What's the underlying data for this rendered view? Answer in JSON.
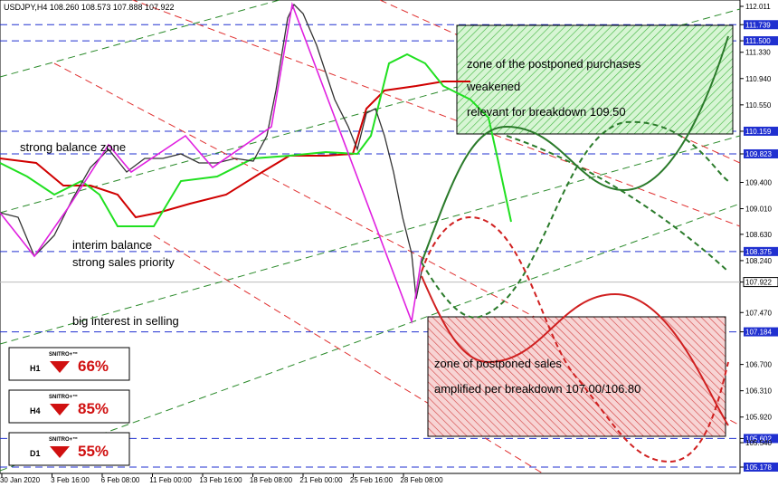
{
  "header": {
    "title": "USDJPY,H4  108.260 108.573 107.888 107.922"
  },
  "price_axis": [
    "112.011",
    "111.739",
    "111.500",
    "111.330",
    "110.940",
    "110.550",
    "110.159",
    "109.823",
    "109.400",
    "109.010",
    "108.630",
    "108.375",
    "108.240",
    "107.922",
    "107.470",
    "107.184",
    "106.700",
    "106.310",
    "105.920",
    "105.602",
    "105.540",
    "105.178"
  ],
  "time_axis": [
    "30 Jan 2020",
    "3 Feb 16:00",
    "6 Feb 08:00",
    "11 Feb 00:00",
    "13 Feb 16:00",
    "18 Feb 08:00",
    "21 Feb 00:00",
    "25 Feb 16:00",
    "28 Feb 08:00"
  ],
  "annotations": [
    "strong balance zone",
    "interim balance",
    "strong sales priority",
    "big interest in selling",
    "zone of the postponed purchases",
    "weakened",
    "relevant for breakdown 109.50",
    "zone of postponed sales",
    "amplified per breakdown 107.00/106.80"
  ],
  "panels": [
    {
      "timeframe": "H1",
      "brand": "SNITRO+™",
      "percent": "66%"
    },
    {
      "timeframe": "H4",
      "brand": "SNITRO+™",
      "percent": "85%"
    },
    {
      "timeframe": "D1",
      "brand": "SNITRO+™",
      "percent": "55%"
    }
  ]
}
